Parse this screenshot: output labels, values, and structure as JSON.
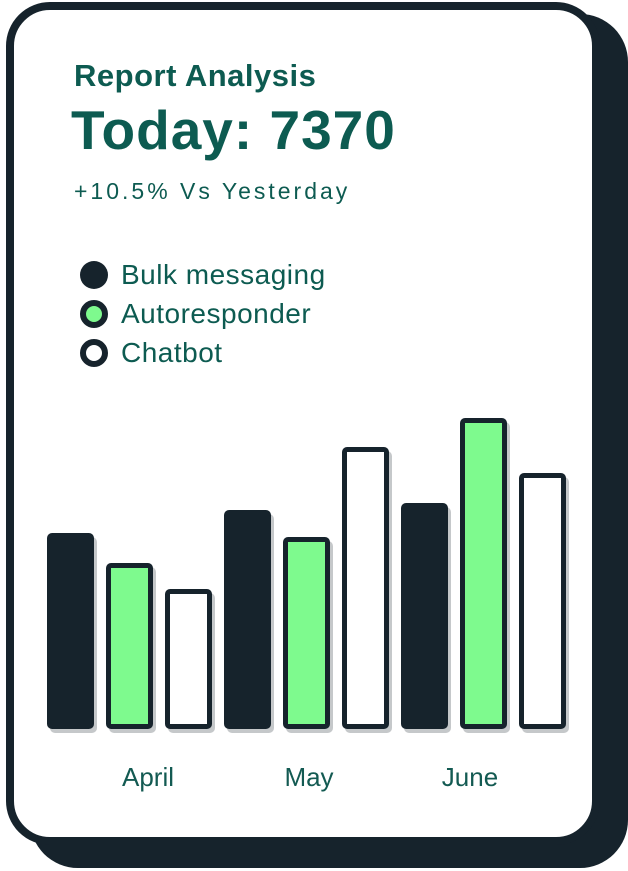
{
  "card": {
    "title": "Report Analysis",
    "headline": "Today: 7370",
    "delta": "+10.5% Vs Yesterday"
  },
  "legend": [
    {
      "label": "Bulk messaging",
      "swatch": "dark",
      "icon": "filled-circle-icon"
    },
    {
      "label": "Autoresponder",
      "swatch": "green",
      "icon": "ringed-circle-icon"
    },
    {
      "label": "Chatbot",
      "swatch": "white",
      "icon": "outline-circle-icon"
    }
  ],
  "colors": {
    "dark": "#16232c",
    "green": "#7efa8e",
    "white": "#ffffff",
    "teal_text": "#0d5b51",
    "card_background": "#ffffff"
  },
  "chart_data": {
    "type": "bar",
    "title": "Report Analysis",
    "subtitle": "Today: 7370 (+10.5% Vs Yesterday)",
    "categories": [
      "April",
      "May",
      "June"
    ],
    "series": [
      {
        "name": "Bulk messaging",
        "color_key": "dark",
        "values": [
          196,
          219,
          226
        ]
      },
      {
        "name": "Autoresponder",
        "color_key": "green",
        "values": [
          166,
          192,
          311
        ]
      },
      {
        "name": "Chatbot",
        "color_key": "white",
        "values": [
          140,
          282,
          256
        ]
      }
    ],
    "value_unit": "bar-height-px (no numeric axis shown)",
    "xlabel": "",
    "ylabel": "",
    "grid": false,
    "axes_visible": false,
    "legend_position": "top-left",
    "bar_order_per_group": [
      "Bulk messaging",
      "Autoresponder",
      "Chatbot"
    ]
  }
}
